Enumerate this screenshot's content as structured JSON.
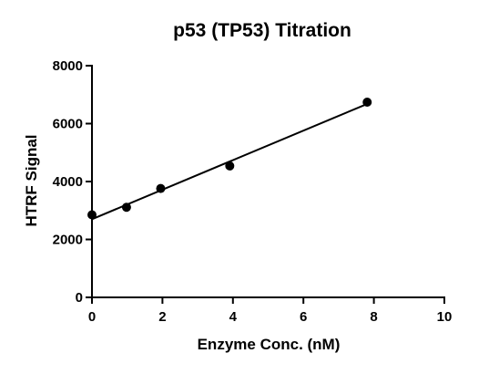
{
  "chart_data": {
    "type": "scatter",
    "title": "p53 (TP53) Titration",
    "xlabel": "Enzyme Conc. (nM)",
    "ylabel": "HTRF Signal",
    "xlim": [
      0,
      10
    ],
    "ylim": [
      0,
      8000
    ],
    "x_ticks": [
      0,
      2,
      4,
      6,
      8,
      10
    ],
    "y_ticks": [
      0,
      2000,
      4000,
      6000,
      8000
    ],
    "x_tick_labels": [
      "0",
      "2",
      "4",
      "6",
      "8",
      "10"
    ],
    "y_tick_labels": [
      "0",
      "2000",
      "4000",
      "6000",
      "8000"
    ],
    "grid": false,
    "legend": "none",
    "series": [
      {
        "x": [
          0,
          0.98,
          1.95,
          3.91,
          7.81
        ],
        "y": [
          2850,
          3110,
          3760,
          4540,
          6740
        ],
        "marker": "filled-circle",
        "color": "#000000"
      }
    ],
    "fit_line": {
      "type": "linear",
      "x_range": [
        0,
        7.81
      ],
      "y_range": [
        2700,
        6680
      ],
      "color": "#000000"
    }
  }
}
